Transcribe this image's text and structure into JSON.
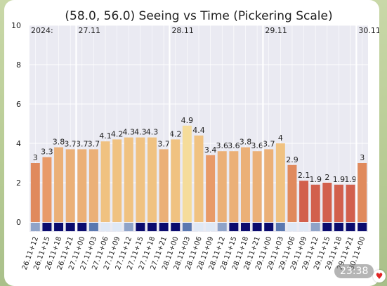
{
  "chart_data": {
    "type": "bar",
    "title": "(58.0, 56.0) Seeing vs Time (Pickering Scale)",
    "year_label": "2024:",
    "ylim": [
      0,
      10
    ],
    "y_ticks": [
      0,
      2,
      4,
      6,
      8,
      10
    ],
    "categories": [
      "26.11+12",
      "26.11+15",
      "26.11+18",
      "26.11+21",
      "27.11+00",
      "27.11+03",
      "27.11+06",
      "27.11+09",
      "27.11+12",
      "27.11+15",
      "27.11+18",
      "27.11+21",
      "28.11+00",
      "28.11+03",
      "28.11+06",
      "28.11+09",
      "28.11+12",
      "28.11+15",
      "28.11+18",
      "28.11+21",
      "29.11+00",
      "29.11+03",
      "29.11+06",
      "29.11+09",
      "29.11+12",
      "29.11+15",
      "29.11+18",
      "29.11+21",
      "30.11+00"
    ],
    "values": [
      3,
      3.3,
      3.8,
      3.7,
      3.7,
      3.7,
      4.1,
      4.2,
      4.3,
      4.3,
      4.3,
      3.7,
      4.2,
      4.9,
      4.4,
      3.4,
      3.6,
      3.6,
      3.8,
      3.6,
      3.7,
      4,
      2.9,
      2.1,
      1.9,
      2,
      1.9,
      1.9,
      3
    ],
    "value_labels": [
      "3",
      "3.3",
      "3.8",
      "3.7",
      "3.7",
      "3.7",
      "4.1",
      "4.2",
      "4.3",
      "4.3",
      "4.3",
      "3.7",
      "4.2",
      "4.9",
      "4.4",
      "3.4",
      "3.6",
      "3.6",
      "3.8",
      "3.6",
      "3.7",
      "4",
      "2.9",
      "2.1",
      "1.9",
      "2",
      "1.9",
      "1.9",
      "3"
    ],
    "cloud_colors": [
      "#8fa3c8",
      "#0b0b6e",
      "#0b0b6e",
      "#0b0b6e",
      "#0b0b6e",
      "#5a78b0",
      "#dfe8f5",
      "#dfe8f5",
      "#8fa3c8",
      "#0b0b6e",
      "#0b0b6e",
      "#0b0b6e",
      "#0b0b6e",
      "#5a78b0",
      "#dfe8f5",
      "#dfe8f5",
      "#8fa3c8",
      "#0b0b6e",
      "#0b0b6e",
      "#0b0b6e",
      "#0b0b6e",
      "#5a78b0",
      "#dfe8f5",
      "#dfe8f5",
      "#8fa3c8",
      "#0b0b6e",
      "#0b0b6e",
      "#0b0b6e",
      "#0b0b6e"
    ],
    "day_markers": [
      {
        "index": 4,
        "label": "27.11"
      },
      {
        "index": 12,
        "label": "28.11"
      },
      {
        "index": 20,
        "label": "29.11"
      },
      {
        "index": 28,
        "label": "30.11"
      }
    ],
    "grid": true,
    "plot_background": "#eaeaf2",
    "legend": "none"
  },
  "overlay": {
    "time": "23:38",
    "heart": "♥"
  }
}
